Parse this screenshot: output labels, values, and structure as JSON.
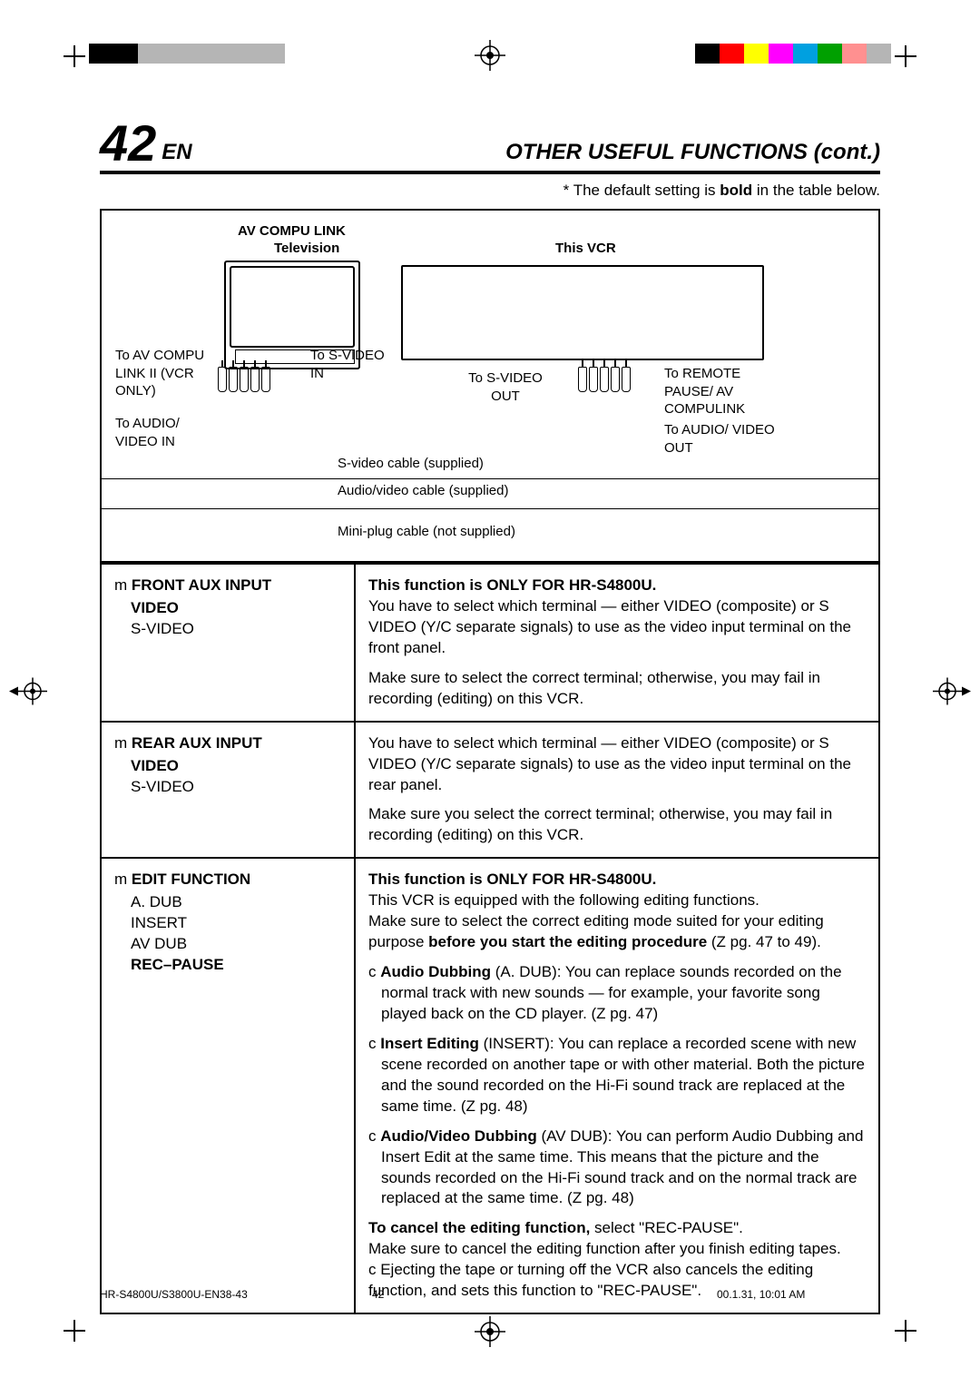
{
  "registration_colors_left": [
    "#000000",
    "#000000",
    "#b5b5b5",
    "#b5b5b5",
    "#b5b5b5",
    "#b5b5b5",
    "#b5b5b5",
    "#b5b5b5"
  ],
  "registration_colors_right": [
    "#000000",
    "#ff0000",
    "#ffff00",
    "#ff00ff",
    "#00a0e0",
    "#00a000",
    "#ff9090",
    "#b5b5b5"
  ],
  "header": {
    "page_number": "42",
    "lang": "EN",
    "section_title": "OTHER USEFUL FUNCTIONS (cont.)"
  },
  "default_note": "* The default setting is bold in the table below.",
  "diagram": {
    "av_compu_link": "AV COMPU LINK",
    "television": "Television",
    "this_vcr": "This VCR",
    "to_av_compu": "To AV COMPU LINK II (VCR ONLY)",
    "to_audio_in": "To AUDIO/ VIDEO IN",
    "to_svideo_in": "To S-VIDEO IN",
    "to_svideo_out": "To  S-VIDEO OUT",
    "to_remote": "To REMOTE PAUSE/ AV COMPULINK",
    "to_audio_out": "To AUDIO/ VIDEO OUT",
    "svideo_cable": "S-video cable (supplied)",
    "av_cable": "Audio/video cable (supplied)",
    "miniplug_cable": "Mini-plug cable (not supplied)"
  },
  "rows": {
    "front_aux": {
      "prefix": "m",
      "name": "FRONT AUX INPUT",
      "opt_bold": "VIDEO",
      "opt": "S-VIDEO",
      "note": "This function is ONLY FOR HR-S4800U.",
      "p1": "You have to select which terminal — either VIDEO (composite) or S VIDEO (Y/C separate signals) to use as the video input terminal on the front panel.",
      "p2": "Make sure to select the correct terminal; otherwise, you may fail in recording (editing) on this VCR."
    },
    "rear_aux": {
      "prefix": "m",
      "name": "REAR AUX INPUT",
      "opt_bold": "VIDEO",
      "opt": "S-VIDEO",
      "p1": "You have to select which terminal — either VIDEO (composite) or S VIDEO (Y/C separate signals) to use as the video input terminal on the rear panel.",
      "p2": "Make sure you select the correct terminal; otherwise, you may fail in recording (editing) on this VCR."
    },
    "edit": {
      "prefix": "m",
      "name": "EDIT FUNCTION",
      "opt1": "A. DUB",
      "opt2": "INSERT",
      "opt3": "AV DUB",
      "opt_bold": "REC–PAUSE",
      "note": "This function is ONLY FOR HR-S4800U.",
      "intro1": "This VCR is equipped with the following editing functions.",
      "intro2a": "Make sure to select the correct editing mode suited for your editing purpose ",
      "intro2b": "before you start the editing procedure",
      "intro2c": " (Z pg. 47 to 49).",
      "b1_head": "Audio Dubbing",
      "b1_body": " (A. DUB): You can replace sounds recorded on the normal track with new sounds — for example, your favorite song played back on the CD player. (Z pg. 47)",
      "b2_head": "Insert Editing",
      "b2_body": " (INSERT): You can replace a recorded scene with new scene recorded on another tape or with other material. Both the picture and the sound recorded on the Hi-Fi sound track are replaced at the same time. (Z pg. 48)",
      "b3_head": "Audio/Video Dubbing",
      "b3_body": " (AV DUB): You can perform Audio Dubbing and Insert Edit at the same time. This means that the picture and the sounds recorded on the Hi-Fi sound track and on the normal track are replaced at the same time. (Z pg. 48)",
      "cancel_head": "To cancel the editing function,",
      "cancel_body1": " select \"REC-PAUSE\".",
      "cancel_body2": "Make sure to cancel the editing function after you finish editing tapes.",
      "cancel_body3": "c Ejecting the tape or turning off the VCR also cancels the editing function, and sets this function to \"REC-PAUSE\"."
    }
  },
  "footer": {
    "filename": "HR-S4800U/S3800U-EN38-43",
    "page": "42",
    "timestamp": "00.1.31, 10:01 AM"
  }
}
